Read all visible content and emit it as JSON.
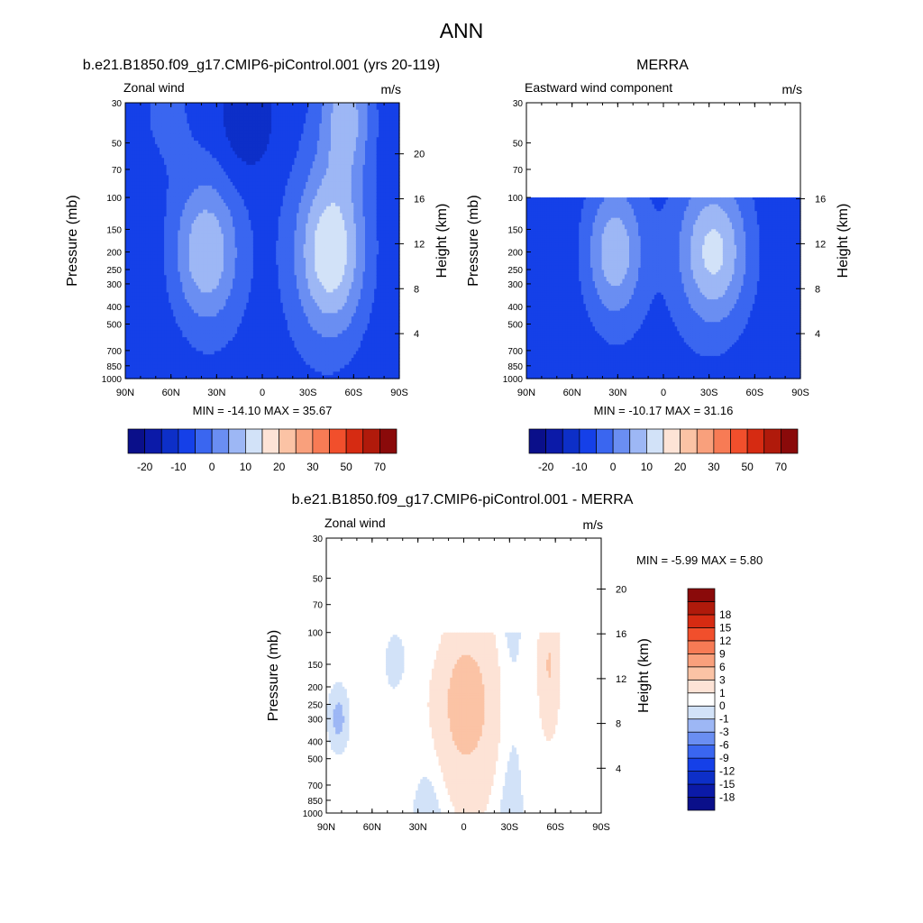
{
  "figure_title": "ANN",
  "colors": {
    "p12": [
      "#0a0f8a",
      "#0b1aa8",
      "#0d2fc8",
      "#1540e8",
      "#3a66f0",
      "#6a8ef2",
      "#9db7f5",
      "#d2e2f8",
      "#fde3d6",
      "#fbc3a5",
      "#f9a07c",
      "#f77b55",
      "#f14f2c",
      "#d62b12",
      "#b01a0b",
      "#8a0a0a"
    ],
    "diff": [
      "#0a0f8a",
      "#0b1aa8",
      "#0d2fc8",
      "#1540e8",
      "#3a66f0",
      "#6a8ef2",
      "#9db7f5",
      "#d2e2f8",
      "#ffffff",
      "#fde3d6",
      "#fbc3a5",
      "#f9a07c",
      "#f77b55",
      "#f14f2c",
      "#d62b12",
      "#b01a0b",
      "#8a0a0a"
    ]
  },
  "chart_data": [
    {
      "id": "model",
      "type": "heatmap",
      "title": "b.e21.B1850.f09_g17.CMIP6-piControl.001 (yrs 20-119)",
      "left_label": "Zonal wind",
      "right_label": "m/s",
      "ylabel": "Pressure (mb)",
      "ylabel_right": "Height (km)",
      "xlim": [
        90,
        -90
      ],
      "ylim": [
        1000,
        30
      ],
      "x_ticks": [
        90,
        60,
        30,
        0,
        -30,
        -60,
        -90
      ],
      "x_ticklabels": [
        "90N",
        "60N",
        "30N",
        "0",
        "30S",
        "60S",
        "90S"
      ],
      "y_ticks": [
        30,
        50,
        70,
        100,
        150,
        200,
        250,
        300,
        400,
        500,
        700,
        850,
        1000
      ],
      "y_ticklabels": [
        "30",
        "50",
        "70",
        "100",
        "150",
        "200",
        "250",
        "300",
        "400",
        "500",
        "700",
        "850",
        "1000"
      ],
      "height_ticks": [
        20,
        16,
        12,
        8,
        4
      ],
      "data_top": 30,
      "min_max_label": "MIN = -14.10  MAX = 35.67",
      "colorbar": {
        "orientation": "horizontal",
        "palette": "p12",
        "levels": [
          -25,
          -20,
          -15,
          -10,
          -5,
          0,
          5,
          10,
          15,
          20,
          25,
          30,
          40,
          50,
          60,
          70
        ],
        "labels": [
          "-20",
          "-10",
          "0",
          "10",
          "20",
          "30",
          "50",
          "70"
        ]
      },
      "jets": [
        {
          "lat": 37,
          "p": 200,
          "amp": 17,
          "sx": 15,
          "sy": 0.65
        },
        {
          "lat": -45,
          "p": 200,
          "amp": 22,
          "sx": 16,
          "sy": 0.75
        },
        {
          "lat": -55,
          "p": 35,
          "amp": 15,
          "sx": 12,
          "sy": 0.6
        }
      ]
    },
    {
      "id": "obs",
      "type": "heatmap",
      "title": "MERRA",
      "left_label": "Eastward wind component",
      "right_label": "m/s",
      "ylabel": "Pressure (mb)",
      "ylabel_right": "Height (km)",
      "xlim": [
        90,
        -90
      ],
      "ylim": [
        1000,
        30
      ],
      "x_ticks": [
        90,
        60,
        30,
        0,
        -30,
        -60,
        -90
      ],
      "x_ticklabels": [
        "90N",
        "60N",
        "30N",
        "0",
        "30S",
        "60S",
        "90S"
      ],
      "y_ticks": [
        30,
        50,
        70,
        100,
        150,
        200,
        250,
        300,
        400,
        500,
        700,
        850,
        1000
      ],
      "y_ticklabels": [
        "30",
        "50",
        "70",
        "100",
        "150",
        "200",
        "250",
        "300",
        "400",
        "500",
        "700",
        "850",
        "1000"
      ],
      "height_ticks": [
        16,
        12,
        8,
        4
      ],
      "data_top": 100,
      "min_max_label": "MIN = -10.17  MAX = 31.16",
      "colorbar": {
        "orientation": "horizontal",
        "palette": "p12",
        "levels": [
          -25,
          -20,
          -15,
          -10,
          -5,
          0,
          5,
          10,
          15,
          20,
          25,
          30,
          40,
          50,
          60,
          70
        ],
        "labels": [
          "-20",
          "-10",
          "0",
          "10",
          "20",
          "30",
          "50",
          "70"
        ]
      },
      "jets": [
        {
          "lat": 32,
          "p": 200,
          "amp": 16,
          "sx": 13,
          "sy": 0.6
        },
        {
          "lat": -33,
          "p": 200,
          "amp": 19,
          "sx": 16,
          "sy": 0.65
        }
      ]
    },
    {
      "id": "diff",
      "type": "heatmap",
      "title": "b.e21.B1850.f09_g17.CMIP6-piControl.001 - MERRA",
      "left_label": "Zonal wind",
      "right_label": "m/s",
      "ylabel": "Pressure (mb)",
      "ylabel_right": "Height (km)",
      "xlim": [
        90,
        -90
      ],
      "ylim": [
        1000,
        30
      ],
      "x_ticks": [
        90,
        60,
        30,
        0,
        -30,
        -60,
        -90
      ],
      "x_ticklabels": [
        "90N",
        "60N",
        "30N",
        "0",
        "30S",
        "60S",
        "90S"
      ],
      "y_ticks": [
        30,
        50,
        70,
        100,
        150,
        200,
        250,
        300,
        400,
        500,
        700,
        850,
        1000
      ],
      "y_ticklabels": [
        "30",
        "50",
        "70",
        "100",
        "150",
        "200",
        "250",
        "300",
        "400",
        "500",
        "700",
        "850",
        "1000"
      ],
      "height_ticks": [
        20,
        16,
        12,
        8,
        4
      ],
      "data_top": 100,
      "min_max_label": "MIN =  -5.99  MAX =   5.80",
      "colorbar": {
        "orientation": "vertical",
        "palette": "diff",
        "levels": [
          -21,
          -18,
          -15,
          -12,
          -9,
          -6,
          -3,
          -1,
          0,
          1,
          3,
          6,
          9,
          12,
          15,
          18,
          21
        ],
        "labels": [
          "-18",
          "-15",
          "-12",
          "-9",
          "-6",
          "-3",
          "-1",
          "0",
          "1",
          "3",
          "6",
          "9",
          "12",
          "15",
          "18"
        ]
      },
      "blobs": [
        {
          "lat": 2,
          "p": 250,
          "amp": 3.5,
          "sx": 20,
          "sy": 0.8
        },
        {
          "lat": -56,
          "p": 150,
          "amp": 2.5,
          "sx": 4,
          "sy": 0.5
        },
        {
          "lat": 82,
          "p": 300,
          "amp": -2,
          "sx": 5,
          "sy": 0.3
        },
        {
          "lat": 45,
          "p": 150,
          "amp": -1.2,
          "sx": 6,
          "sy": 0.35
        }
      ]
    }
  ]
}
